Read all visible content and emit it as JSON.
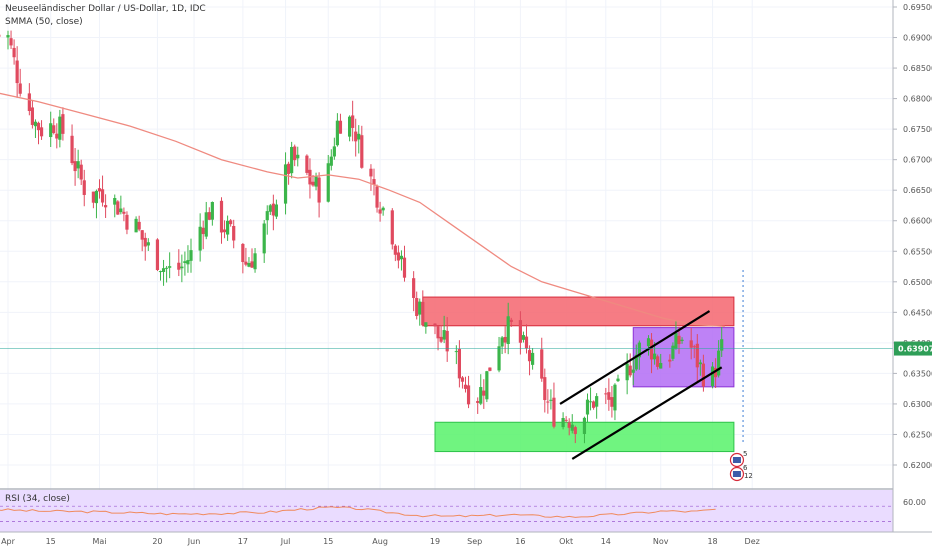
{
  "legend": {
    "title": "Neuseeländischer Dollar / US-Dollar, 1D, IDC",
    "smma": "SMMA (50, close)",
    "rsi": "RSI (34, close)"
  },
  "colors": {
    "up": "#26a69a",
    "up_body": "#3bb54a",
    "down": "#e04a5f",
    "smma": "#ef8a80",
    "resistance_zone": "#f4656e",
    "support_zone": "#57f26a",
    "range_box": "#b36cf5",
    "rsi_line": "#f08a5d",
    "rsi_band": "#eadcff",
    "last_price_bg": "#2e9e57"
  },
  "chart_data": {
    "type": "candlestick",
    "symbol": "NZD/USD",
    "interval": "1D",
    "y_ticks": [
      "0.69500",
      "0.69000",
      "0.68500",
      "0.68000",
      "0.67500",
      "0.67000",
      "0.66500",
      "0.66000",
      "0.65500",
      "0.65000",
      "0.64500",
      "0.64000",
      "0.63500",
      "0.63000",
      "0.62500",
      "0.62000"
    ],
    "ylim": [
      0.6165,
      0.6978
    ],
    "last_price": "0.63907",
    "rsi_tick": "60.00",
    "x_labels": [
      {
        "label": "Apr",
        "day": 0
      },
      {
        "label": "15",
        "day": 14
      },
      {
        "label": "Mai",
        "day": 30
      },
      {
        "label": "20",
        "day": 49
      },
      {
        "label": "Jun",
        "day": 61
      },
      {
        "label": "17",
        "day": 77
      },
      {
        "label": "Jul",
        "day": 91
      },
      {
        "label": "15",
        "day": 105
      },
      {
        "label": "Aug",
        "day": 122
      },
      {
        "label": "19",
        "day": 140
      },
      {
        "label": "Sep",
        "day": 153
      },
      {
        "label": "16",
        "day": 168
      },
      {
        "label": "Okt",
        "day": 183
      },
      {
        "label": "14",
        "day": 196
      },
      {
        "label": "Nov",
        "day": 214
      },
      {
        "label": "18",
        "day": 231
      },
      {
        "label": "Dez",
        "day": 244
      }
    ],
    "close_path": [
      [
        -4,
        0.6905
      ],
      [
        0,
        0.69
      ],
      [
        3,
        0.684
      ],
      [
        6,
        0.6795
      ],
      [
        9,
        0.676
      ],
      [
        12,
        0.6745
      ],
      [
        15,
        0.676
      ],
      [
        18,
        0.6745
      ],
      [
        21,
        0.6705
      ],
      [
        24,
        0.6665
      ],
      [
        27,
        0.6635
      ],
      [
        30,
        0.665
      ],
      [
        33,
        0.664
      ],
      [
        36,
        0.6625
      ],
      [
        39,
        0.6605
      ],
      [
        42,
        0.659
      ],
      [
        45,
        0.656
      ],
      [
        48,
        0.6545
      ],
      [
        51,
        0.6525
      ],
      [
        54,
        0.6515
      ],
      [
        57,
        0.6525
      ],
      [
        60,
        0.6545
      ],
      [
        63,
        0.659
      ],
      [
        66,
        0.6615
      ],
      [
        69,
        0.66
      ],
      [
        72,
        0.6585
      ],
      [
        75,
        0.656
      ],
      [
        78,
        0.653
      ],
      [
        81,
        0.6545
      ],
      [
        84,
        0.6585
      ],
      [
        87,
        0.6625
      ],
      [
        90,
        0.666
      ],
      [
        93,
        0.67
      ],
      [
        96,
        0.669
      ],
      [
        99,
        0.6665
      ],
      [
        102,
        0.665
      ],
      [
        105,
        0.668
      ],
      [
        108,
        0.676
      ],
      [
        111,
        0.6775
      ],
      [
        114,
        0.6745
      ],
      [
        117,
        0.669
      ],
      [
        120,
        0.6655
      ],
      [
        123,
        0.662
      ],
      [
        126,
        0.658
      ],
      [
        129,
        0.6525
      ],
      [
        132,
        0.6475
      ],
      [
        135,
        0.6455
      ],
      [
        138,
        0.643
      ],
      [
        141,
        0.641
      ],
      [
        144,
        0.6395
      ],
      [
        147,
        0.637
      ],
      [
        150,
        0.633
      ],
      [
        153,
        0.6305
      ],
      [
        156,
        0.633
      ],
      [
        159,
        0.638
      ],
      [
        162,
        0.642
      ],
      [
        165,
        0.6425
      ],
      [
        168,
        0.64
      ],
      [
        171,
        0.6375
      ],
      [
        174,
        0.634
      ],
      [
        177,
        0.63
      ],
      [
        180,
        0.6275
      ],
      [
        183,
        0.628
      ],
      [
        186,
        0.627
      ],
      [
        189,
        0.6285
      ],
      [
        192,
        0.6305
      ],
      [
        195,
        0.631
      ],
      [
        198,
        0.63
      ],
      [
        201,
        0.633
      ],
      [
        204,
        0.6365
      ],
      [
        207,
        0.639
      ],
      [
        210,
        0.64
      ],
      [
        213,
        0.637
      ],
      [
        216,
        0.6375
      ],
      [
        219,
        0.6395
      ],
      [
        222,
        0.6415
      ],
      [
        225,
        0.638
      ],
      [
        228,
        0.635
      ],
      [
        231,
        0.6345
      ],
      [
        234,
        0.639
      ]
    ],
    "smma_path": [
      [
        -4,
        0.681
      ],
      [
        10,
        0.6795
      ],
      [
        25,
        0.6775
      ],
      [
        40,
        0.6755
      ],
      [
        55,
        0.673
      ],
      [
        70,
        0.67
      ],
      [
        85,
        0.668
      ],
      [
        95,
        0.667
      ],
      [
        105,
        0.6675
      ],
      [
        115,
        0.6668
      ],
      [
        125,
        0.665
      ],
      [
        135,
        0.663
      ],
      [
        145,
        0.6595
      ],
      [
        155,
        0.656
      ],
      [
        165,
        0.6525
      ],
      [
        175,
        0.65
      ],
      [
        185,
        0.6485
      ],
      [
        195,
        0.647
      ],
      [
        205,
        0.6455
      ],
      [
        215,
        0.644
      ],
      [
        225,
        0.643
      ],
      [
        235,
        0.6427
      ]
    ],
    "rsi_path": [
      [
        -4,
        0.55
      ],
      [
        10,
        0.5
      ],
      [
        25,
        0.48
      ],
      [
        40,
        0.44
      ],
      [
        55,
        0.4
      ],
      [
        70,
        0.42
      ],
      [
        85,
        0.46
      ],
      [
        95,
        0.55
      ],
      [
        105,
        0.62
      ],
      [
        115,
        0.58
      ],
      [
        125,
        0.45
      ],
      [
        135,
        0.35
      ],
      [
        145,
        0.32
      ],
      [
        155,
        0.34
      ],
      [
        165,
        0.38
      ],
      [
        175,
        0.33
      ],
      [
        185,
        0.3
      ],
      [
        195,
        0.36
      ],
      [
        205,
        0.42
      ],
      [
        215,
        0.5
      ],
      [
        225,
        0.48
      ],
      [
        232,
        0.55
      ]
    ],
    "zones": [
      {
        "name": "resistance",
        "d0": 136,
        "d1": 238,
        "p0": 0.6475,
        "p1": 0.6428
      },
      {
        "name": "support",
        "d0": 140,
        "d1": 238,
        "p0": 0.627,
        "p1": 0.6222
      },
      {
        "name": "range",
        "d0": 205,
        "d1": 238,
        "p0": 0.6425,
        "p1": 0.6328
      }
    ],
    "channel": {
      "upper": {
        "d0": 181,
        "p0": 0.63,
        "d1": 230,
        "p1": 0.6452
      },
      "lower": {
        "d0": 185,
        "p0": 0.621,
        "d1": 234,
        "p1": 0.636
      }
    },
    "markers": [
      {
        "label": "5"
      },
      {
        "label": "6"
      },
      {
        "label": "12"
      }
    ]
  }
}
